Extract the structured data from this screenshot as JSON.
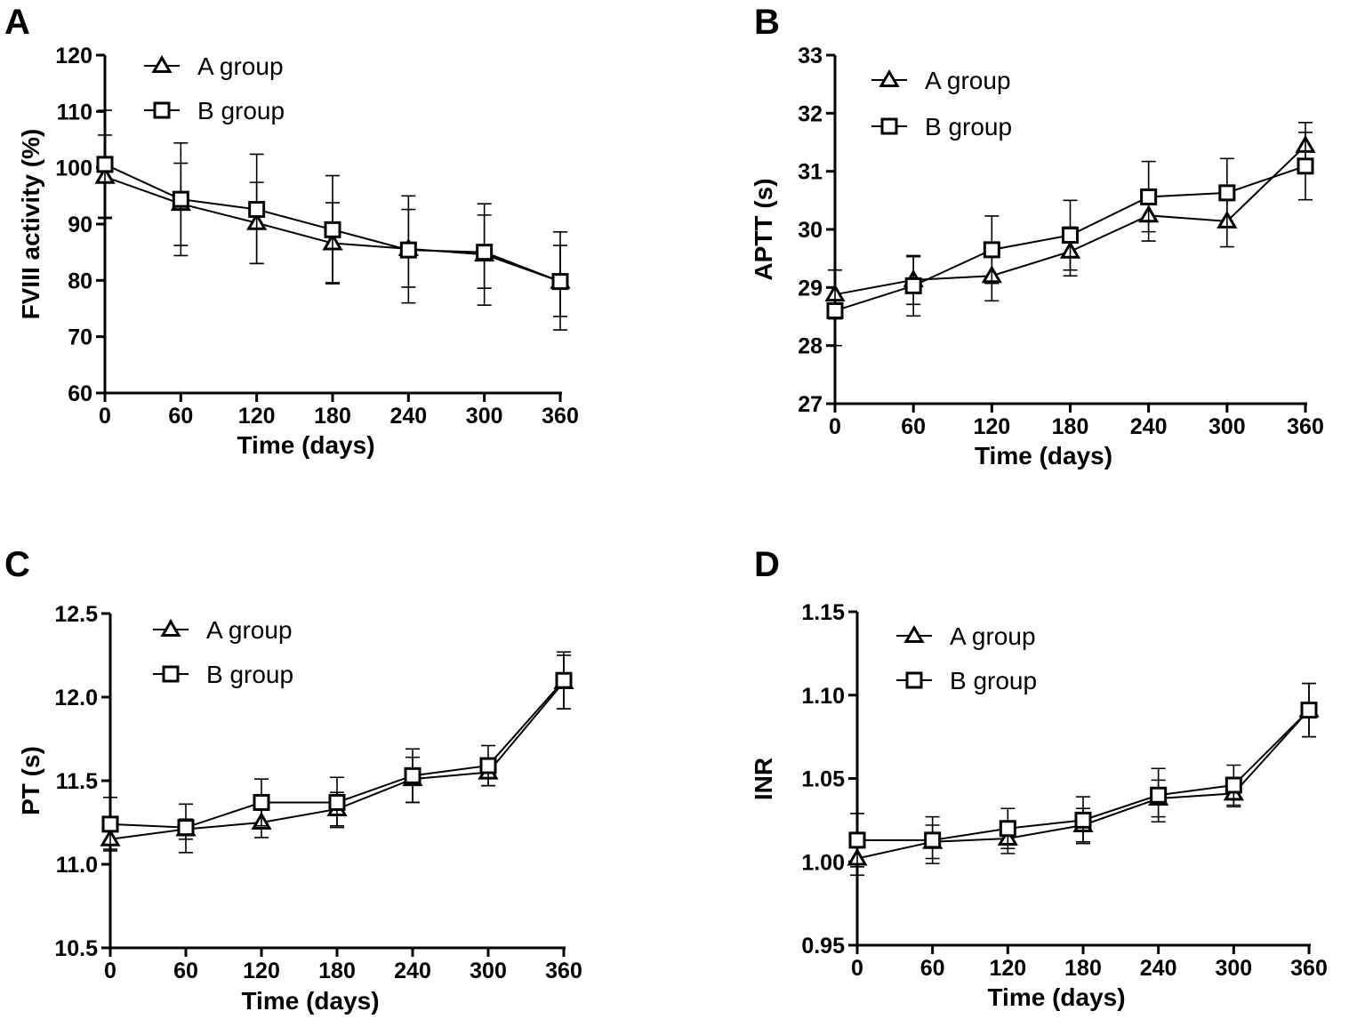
{
  "figure": {
    "marker_color": "#000000",
    "background": "#ffffff"
  },
  "chart_data": [
    {
      "panel": "A",
      "type": "line",
      "xlabel": "Time (days)",
      "ylabel": "FVIII activity (%)",
      "x": [
        0,
        60,
        120,
        180,
        240,
        300,
        360
      ],
      "xticks": [
        0,
        60,
        120,
        180,
        240,
        300,
        360
      ],
      "xlim": [
        0,
        360
      ],
      "yticks": [
        60,
        70,
        80,
        90,
        100,
        110,
        120
      ],
      "ylim": [
        60,
        120
      ],
      "grid": false,
      "legend_position": "top-left",
      "series": [
        {
          "name": "A group",
          "marker": "triangle-icon",
          "values": [
            98.4,
            93.6,
            90.2,
            86.6,
            85.6,
            84.6,
            79.8
          ],
          "err_lower": [
            7.4,
            7.4,
            7.2,
            7.0,
            6.8,
            6.0,
            6.2
          ],
          "err_upper": [
            7.4,
            7.2,
            7.2,
            7.2,
            7.0,
            7.0,
            6.4
          ]
        },
        {
          "name": "B group",
          "marker": "square-icon",
          "values": [
            100.6,
            94.4,
            92.6,
            89.0,
            85.4,
            85.0,
            79.8
          ],
          "err_lower": [
            9.4,
            10.0,
            9.6,
            9.6,
            9.4,
            9.4,
            8.6
          ],
          "err_upper": [
            9.6,
            10.0,
            9.8,
            9.6,
            9.6,
            8.6,
            8.8
          ]
        }
      ]
    },
    {
      "panel": "B",
      "type": "line",
      "xlabel": "Time (days)",
      "ylabel": "APTT (s)",
      "x": [
        0,
        60,
        120,
        180,
        240,
        300,
        360
      ],
      "xticks": [
        0,
        60,
        120,
        180,
        240,
        300,
        360
      ],
      "xlim": [
        0,
        360
      ],
      "yticks": [
        27,
        28,
        29,
        30,
        31,
        32,
        33
      ],
      "ylim": [
        27,
        33
      ],
      "grid": false,
      "legend_position": "top-left",
      "series": [
        {
          "name": "A group",
          "marker": "triangle-icon",
          "values": [
            28.88,
            29.13,
            29.2,
            29.62,
            30.24,
            30.14,
            31.44
          ],
          "err_lower": [
            0.42,
            0.42,
            0.43,
            0.42,
            0.44,
            0.44,
            0.4
          ],
          "err_upper": [
            0.42,
            0.42,
            0.42,
            0.42,
            0.43,
            0.43,
            0.4
          ]
        },
        {
          "name": "B group",
          "marker": "square-icon",
          "values": [
            28.6,
            29.03,
            29.65,
            29.9,
            30.56,
            30.63,
            31.09
          ],
          "err_lower": [
            0.6,
            0.52,
            0.58,
            0.6,
            0.6,
            0.59,
            0.58
          ],
          "err_upper": [
            0.7,
            0.5,
            0.58,
            0.6,
            0.61,
            0.59,
            0.58
          ]
        }
      ]
    },
    {
      "panel": "C",
      "type": "line",
      "xlabel": "Time (days)",
      "ylabel": "PT (s)",
      "x": [
        0,
        60,
        120,
        180,
        240,
        300,
        360
      ],
      "xticks": [
        0,
        60,
        120,
        180,
        240,
        300,
        360
      ],
      "xlim": [
        0,
        360
      ],
      "yticks": [
        10.5,
        11.0,
        11.5,
        12.0,
        12.5
      ],
      "ytick_labels": [
        "10.5",
        "11.0",
        "11.5",
        "12.0",
        "12.5"
      ],
      "ylim": [
        10.5,
        12.5
      ],
      "grid": false,
      "legend_position": "top-left",
      "series": [
        {
          "name": "A group",
          "marker": "triangle-icon",
          "values": [
            11.15,
            11.21,
            11.25,
            11.33,
            11.51,
            11.55,
            12.09
          ],
          "err_lower": [
            0.06,
            0.06,
            0.09,
            0.1,
            0.14,
            0.08,
            0.16
          ],
          "err_upper": [
            0.06,
            0.06,
            0.09,
            0.1,
            0.13,
            0.08,
            0.16
          ]
        },
        {
          "name": "B group",
          "marker": "square-icon",
          "values": [
            11.24,
            11.22,
            11.37,
            11.37,
            11.53,
            11.59,
            12.1
          ],
          "err_lower": [
            0.16,
            0.15,
            0.14,
            0.15,
            0.16,
            0.12,
            0.17
          ],
          "err_upper": [
            0.16,
            0.14,
            0.14,
            0.15,
            0.16,
            0.12,
            0.17
          ]
        }
      ]
    },
    {
      "panel": "D",
      "type": "line",
      "xlabel": "Time (days)",
      "ylabel": "INR",
      "x": [
        0,
        60,
        120,
        180,
        240,
        300,
        360
      ],
      "xticks": [
        0,
        60,
        120,
        180,
        240,
        300,
        360
      ],
      "xlim": [
        0,
        360
      ],
      "yticks": [
        0.95,
        1.0,
        1.05,
        1.1,
        1.15
      ],
      "ytick_labels": [
        "0.95",
        "1.00",
        "1.05",
        "1.10",
        "1.15"
      ],
      "ylim": [
        0.95,
        1.15
      ],
      "grid": false,
      "legend_position": "top-left",
      "series": [
        {
          "name": "A group",
          "marker": "triangle-icon",
          "values": [
            1.002,
            1.012,
            1.014,
            1.022,
            1.038,
            1.041,
            1.091
          ],
          "err_lower": [
            0.01,
            0.01,
            0.009,
            0.01,
            0.011,
            0.008,
            0.016
          ],
          "err_upper": [
            0.01,
            0.01,
            0.009,
            0.01,
            0.011,
            0.008,
            0.016
          ]
        },
        {
          "name": "B group",
          "marker": "square-icon",
          "values": [
            1.013,
            1.013,
            1.02,
            1.025,
            1.04,
            1.046,
            1.091
          ],
          "err_lower": [
            0.016,
            0.014,
            0.012,
            0.014,
            0.016,
            0.012,
            0.016
          ],
          "err_upper": [
            0.016,
            0.014,
            0.012,
            0.014,
            0.016,
            0.012,
            0.016
          ]
        }
      ]
    }
  ]
}
